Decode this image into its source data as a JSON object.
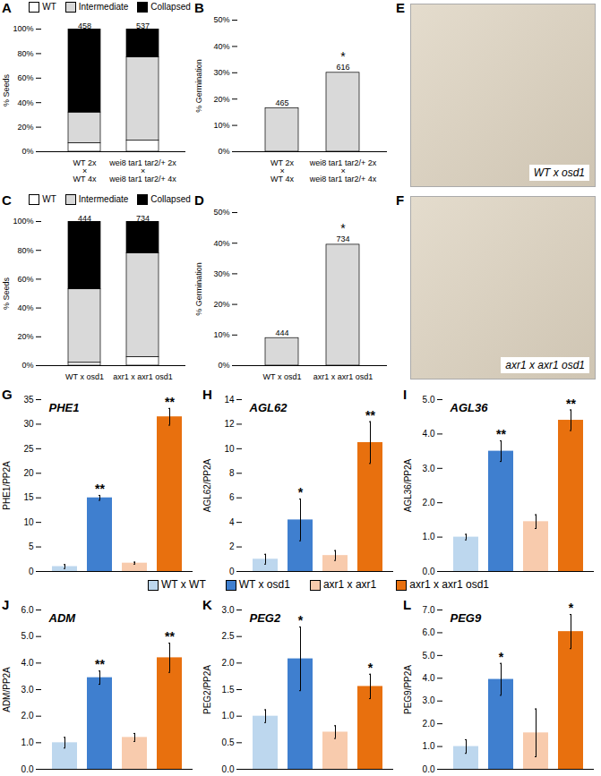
{
  "chart_data": [
    {
      "panel": "A",
      "type": "bar",
      "stacked": true,
      "ylabel": "% Seeds",
      "categories": [
        "WT 2x\n×\nWT 4x",
        "wei8 tar1 tar2/+ 2x\n×\nwei8 tar1 tar2/+ 4x"
      ],
      "series": [
        {
          "name": "WT",
          "color": "#ffffff",
          "values": [
            7,
            9
          ]
        },
        {
          "name": "Intermediate",
          "color": "#d9d9d9",
          "values": [
            25,
            68
          ]
        },
        {
          "name": "Collapsed",
          "color": "#000000",
          "values": [
            68,
            23
          ]
        }
      ],
      "counts": [
        458,
        537
      ],
      "legend": "top",
      "ylim": [
        0,
        100
      ],
      "yticks": [
        {
          "value": 0,
          "label": "0%"
        },
        {
          "value": 20,
          "label": "20%"
        },
        {
          "value": 40,
          "label": "40%"
        },
        {
          "value": 60,
          "label": "60%"
        },
        {
          "value": 80,
          "label": "80%"
        },
        {
          "value": 100,
          "label": "100%"
        }
      ]
    },
    {
      "panel": "B",
      "type": "bar",
      "ylabel": "% Germination",
      "categories": [
        "WT 2x\n×\nWT 4x",
        "wei8 tar1 tar2/+ 2x\n×\nwei8 tar1 tar2/+ 4x"
      ],
      "values": [
        16.5,
        30
      ],
      "color": "#d9d9d9",
      "counts": [
        465,
        616
      ],
      "annotations": [
        null,
        "*"
      ],
      "ylim": [
        0,
        50
      ],
      "yticks": [
        {
          "value": 0,
          "label": "0%"
        },
        {
          "value": 10,
          "label": "10%"
        },
        {
          "value": 20,
          "label": "20%"
        },
        {
          "value": 30,
          "label": "30%"
        },
        {
          "value": 40,
          "label": "40%"
        },
        {
          "value": 50,
          "label": "50%"
        }
      ]
    },
    {
      "panel": "E",
      "type": "image",
      "caption": "WT x osd1"
    },
    {
      "panel": "C",
      "type": "bar",
      "stacked": true,
      "ylabel": "% Seeds",
      "categories": [
        "WT x osd1",
        "axr1 x axr1 osd1"
      ],
      "series": [
        {
          "name": "WT",
          "color": "#ffffff",
          "values": [
            2,
            6
          ]
        },
        {
          "name": "Intermediate",
          "color": "#d9d9d9",
          "values": [
            51,
            72
          ]
        },
        {
          "name": "Collapsed",
          "color": "#000000",
          "values": [
            47,
            22
          ]
        }
      ],
      "counts": [
        444,
        734
      ],
      "legend": "top",
      "ylim": [
        0,
        100
      ],
      "yticks": [
        {
          "value": 0,
          "label": "0%"
        },
        {
          "value": 20,
          "label": "20%"
        },
        {
          "value": 40,
          "label": "40%"
        },
        {
          "value": 60,
          "label": "60%"
        },
        {
          "value": 80,
          "label": "80%"
        },
        {
          "value": 100,
          "label": "100%"
        }
      ]
    },
    {
      "panel": "D",
      "type": "bar",
      "ylabel": "% Germination",
      "categories": [
        "WT x osd1",
        "axr1 x axr1 osd1"
      ],
      "values": [
        9,
        39.5
      ],
      "color": "#d9d9d9",
      "counts": [
        444,
        734
      ],
      "annotations": [
        null,
        "*"
      ],
      "ylim": [
        0,
        50
      ],
      "yticks": [
        {
          "value": 0,
          "label": "0%"
        },
        {
          "value": 10,
          "label": "10%"
        },
        {
          "value": 20,
          "label": "20%"
        },
        {
          "value": 30,
          "label": "30%"
        },
        {
          "value": 40,
          "label": "40%"
        },
        {
          "value": 50,
          "label": "50%"
        }
      ]
    },
    {
      "panel": "F",
      "type": "image",
      "caption": "axr1 x axr1 osd1"
    },
    {
      "panel": "G",
      "type": "bar",
      "title": "PHE1",
      "ylabel": "PHE1/PP2A",
      "tick_labels": "y",
      "categories": [
        "WT x WT",
        "WT x osd1",
        "axr1 x axr1",
        "axr1 x axr1 osd1"
      ],
      "colors": [
        "#bdd7ee",
        "#3f7fcf",
        "#f8cbad",
        "#e8700e"
      ],
      "values": [
        1.0,
        15.0,
        1.7,
        31.5
      ],
      "errors": [
        0.4,
        0.5,
        0.2,
        1.7
      ],
      "annotations": [
        null,
        "**",
        null,
        "**"
      ],
      "ylim": [
        0,
        35
      ],
      "yticks": [
        0,
        5,
        10,
        15,
        20,
        25,
        30,
        35
      ]
    },
    {
      "panel": "H",
      "type": "bar",
      "title": "AGL62",
      "ylabel": "AGL62/PP2A",
      "tick_labels": "y",
      "categories": [
        "WT x WT",
        "WT x osd1",
        "axr1 x axr1",
        "axr1 x axr1 osd1"
      ],
      "colors": [
        "#bdd7ee",
        "#3f7fcf",
        "#f8cbad",
        "#e8700e"
      ],
      "values": [
        1.0,
        4.2,
        1.3,
        10.5
      ],
      "errors": [
        0.4,
        1.7,
        0.4,
        1.7
      ],
      "annotations": [
        null,
        "*",
        null,
        "**"
      ],
      "ylim": [
        0,
        14
      ],
      "yticks": [
        0,
        2,
        4,
        6,
        8,
        10,
        12,
        14
      ]
    },
    {
      "panel": "I",
      "type": "bar",
      "title": "AGL36",
      "ylabel": "AGL36/PP2A",
      "tick_labels": "y",
      "categories": [
        "WT x WT",
        "WT x osd1",
        "axr1 x axr1",
        "axr1 x axr1 osd1"
      ],
      "colors": [
        "#bdd7ee",
        "#3f7fcf",
        "#f8cbad",
        "#e8700e"
      ],
      "values": [
        1.0,
        3.5,
        1.45,
        4.4
      ],
      "errors": [
        0.08,
        0.3,
        0.2,
        0.3
      ],
      "annotations": [
        null,
        "**",
        null,
        "**"
      ],
      "ylim": [
        0,
        5
      ],
      "yticks": [
        {
          "value": 0,
          "label": "0.0"
        },
        {
          "value": 1,
          "label": "1.0"
        },
        {
          "value": 2,
          "label": "2.0"
        },
        {
          "value": 3,
          "label": "3.0"
        },
        {
          "value": 4,
          "label": "4.0"
        },
        {
          "value": 5,
          "label": "5.0"
        }
      ]
    },
    {
      "type": "legend",
      "legend": "bottom",
      "categories": [
        "WT x WT",
        "WT x osd1",
        "axr1 x axr1",
        "axr1 x axr1 osd1"
      ],
      "colors": [
        "#bdd7ee",
        "#3f7fcf",
        "#f8cbad",
        "#e8700e"
      ]
    },
    {
      "panel": "J",
      "type": "bar",
      "title": "ADM",
      "ylabel": "ADM/PP2A",
      "tick_labels": "y",
      "categories": [
        "WT x WT",
        "WT x osd1",
        "axr1 x axr1",
        "axr1 x axr1 osd1"
      ],
      "colors": [
        "#bdd7ee",
        "#3f7fcf",
        "#f8cbad",
        "#e8700e"
      ],
      "values": [
        1.0,
        3.45,
        1.2,
        4.2
      ],
      "errors": [
        0.2,
        0.25,
        0.15,
        0.55
      ],
      "annotations": [
        null,
        "**",
        null,
        "**"
      ],
      "ylim": [
        0,
        6
      ],
      "yticks": [
        {
          "value": 0,
          "label": "0.0"
        },
        {
          "value": 1,
          "label": "1.0"
        },
        {
          "value": 2,
          "label": "2.0"
        },
        {
          "value": 3,
          "label": "3.0"
        },
        {
          "value": 4,
          "label": "4.0"
        },
        {
          "value": 5,
          "label": "5.0"
        },
        {
          "value": 6,
          "label": "6.0"
        }
      ]
    },
    {
      "panel": "K",
      "type": "bar",
      "title": "PEG2",
      "ylabel": "PEG2/PP2A",
      "tick_labels": "y",
      "categories": [
        "WT x WT",
        "WT x osd1",
        "axr1 x axr1",
        "axr1 x axr1 osd1"
      ],
      "colors": [
        "#bdd7ee",
        "#3f7fcf",
        "#f8cbad",
        "#e8700e"
      ],
      "values": [
        1.0,
        2.08,
        0.7,
        1.56
      ],
      "errors": [
        0.12,
        0.6,
        0.12,
        0.23
      ],
      "annotations": [
        null,
        "*",
        null,
        "*"
      ],
      "ylim": [
        0,
        3
      ],
      "yticks": [
        {
          "value": 0,
          "label": "0.0"
        },
        {
          "value": 0.5,
          "label": "0.5"
        },
        {
          "value": 1,
          "label": "1.0"
        },
        {
          "value": 1.5,
          "label": "1.5"
        },
        {
          "value": 2,
          "label": "2.0"
        },
        {
          "value": 2.5,
          "label": "2.5"
        },
        {
          "value": 3,
          "label": "3.0"
        }
      ]
    },
    {
      "panel": "L",
      "type": "bar",
      "title": "PEG9",
      "ylabel": "PEG9/PP2A",
      "tick_labels": "y",
      "categories": [
        "WT x WT",
        "WT x osd1",
        "axr1 x axr1",
        "axr1 x axr1 osd1"
      ],
      "colors": [
        "#bdd7ee",
        "#3f7fcf",
        "#f8cbad",
        "#e8700e"
      ],
      "values": [
        1.0,
        3.95,
        1.6,
        6.05
      ],
      "errors": [
        0.3,
        0.7,
        1.05,
        0.75
      ],
      "annotations": [
        null,
        "*",
        null,
        "*"
      ],
      "ylim": [
        0,
        7
      ],
      "yticks": [
        {
          "value": 0,
          "label": "0.0"
        },
        {
          "value": 1,
          "label": "1.0"
        },
        {
          "value": 2,
          "label": "2.0"
        },
        {
          "value": 3,
          "label": "3.0"
        },
        {
          "value": 4,
          "label": "4.0"
        },
        {
          "value": 5,
          "label": "5.0"
        },
        {
          "value": 6,
          "label": "6.0"
        },
        {
          "value": 7,
          "label": "7.0"
        }
      ]
    }
  ]
}
